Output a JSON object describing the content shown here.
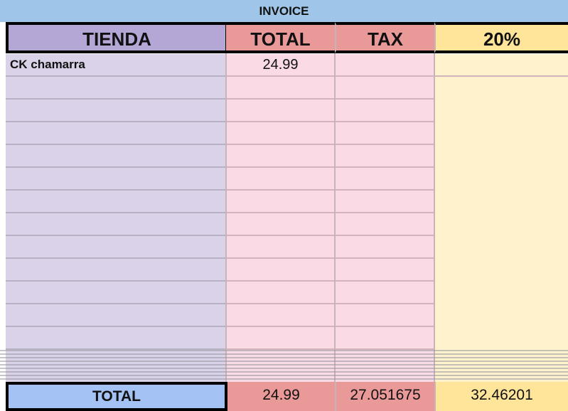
{
  "title": "INVOICE",
  "headers": [
    "TIENDA",
    "TOTAL",
    "TAX",
    "20%"
  ],
  "rows": [
    {
      "tienda": "CK chamarra",
      "total": "24.99",
      "tax": "",
      "pct": ""
    }
  ],
  "totals": {
    "label": "TOTAL",
    "total": "24.99",
    "tax": "27.051675",
    "pct": "32.46201"
  },
  "colors": {
    "title": "#9fc5e8",
    "tienda": "#b4a7d6",
    "total": "#ea9999",
    "pct": "#ffe599",
    "total_label": "#a4c2f4"
  }
}
